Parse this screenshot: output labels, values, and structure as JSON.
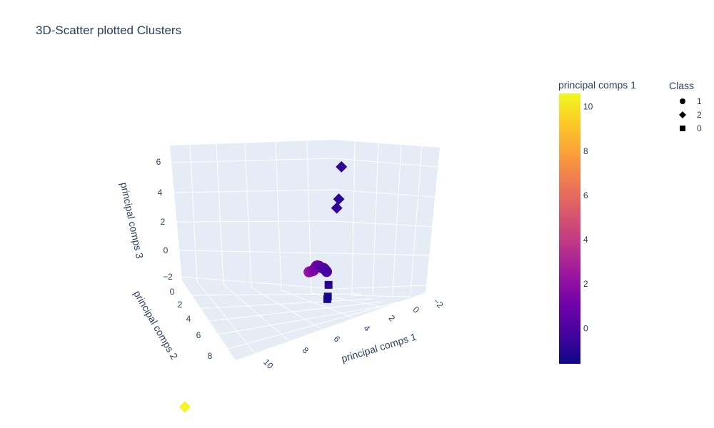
{
  "title": "3D-Scatter plotted Clusters",
  "colorbar": {
    "title": "principal comps 1",
    "ticks": [
      "0",
      "2",
      "4",
      "6",
      "8",
      "10"
    ],
    "colorscale": [
      "#0d0887",
      "#46039f",
      "#7201a8",
      "#9c179e",
      "#bd3786",
      "#d8576b",
      "#ed7953",
      "#fb9f3a",
      "#fdca26",
      "#f0f921"
    ],
    "range": [
      -1.6,
      10.6
    ]
  },
  "legend": {
    "title": "Class",
    "items": [
      {
        "label": "1",
        "symbol": "circle"
      },
      {
        "label": "2",
        "symbol": "diamond"
      },
      {
        "label": "0",
        "symbol": "square"
      }
    ]
  },
  "chart_data": {
    "type": "scatter",
    "mode": "3d",
    "title": "3D-Scatter plotted Clusters",
    "xlabel": "principal comps 1",
    "ylabel": "principal comps 2",
    "zlabel": "principal comps 3",
    "x_ticks": [
      "10",
      "8",
      "6",
      "4",
      "2",
      "0",
      "−2"
    ],
    "y_ticks": [
      "0",
      "2",
      "4",
      "6",
      "8"
    ],
    "z_ticks": [
      "6",
      "4",
      "2",
      "0",
      "−2"
    ],
    "color_by": "principal comps 1",
    "series": [
      {
        "name": "1",
        "symbol": "circle",
        "points": [
          {
            "x": 2.4,
            "y": 0.6,
            "z": 1.0
          },
          {
            "x": 2.2,
            "y": 0.7,
            "z": 1.0
          },
          {
            "x": 2.0,
            "y": 0.8,
            "z": 1.0
          },
          {
            "x": 1.8,
            "y": 0.9,
            "z": 1.0
          },
          {
            "x": 1.6,
            "y": 1.0,
            "z": 1.0
          },
          {
            "x": 1.4,
            "y": 1.1,
            "z": 1.1
          },
          {
            "x": 1.2,
            "y": 1.1,
            "z": 1.2
          },
          {
            "x": 1.0,
            "y": 1.2,
            "z": 1.2
          },
          {
            "x": 0.8,
            "y": 1.2,
            "z": 1.1
          },
          {
            "x": 0.6,
            "y": 1.3,
            "z": 1.0
          },
          {
            "x": 0.4,
            "y": 1.3,
            "z": 0.9
          },
          {
            "x": 0.2,
            "y": 1.3,
            "z": 0.8
          },
          {
            "x": 0.0,
            "y": 1.4,
            "z": 0.7
          },
          {
            "x": -0.2,
            "y": 1.4,
            "z": 0.5
          }
        ]
      },
      {
        "name": "2",
        "symbol": "diamond",
        "points": [
          {
            "x": -0.8,
            "y": 0.4,
            "z": 6.5
          },
          {
            "x": -0.9,
            "y": 0.8,
            "z": 4.6
          },
          {
            "x": -0.7,
            "y": 0.8,
            "z": 4.1
          },
          {
            "x": 10.5,
            "y": 8.0,
            "z": -1.3
          }
        ]
      },
      {
        "name": "0",
        "symbol": "square",
        "points": [
          {
            "x": -0.9,
            "y": 2.0,
            "z": -0.3
          },
          {
            "x": -1.3,
            "y": 2.6,
            "z": -0.9
          },
          {
            "x": -1.4,
            "y": 2.8,
            "z": -1.0
          }
        ]
      }
    ]
  }
}
